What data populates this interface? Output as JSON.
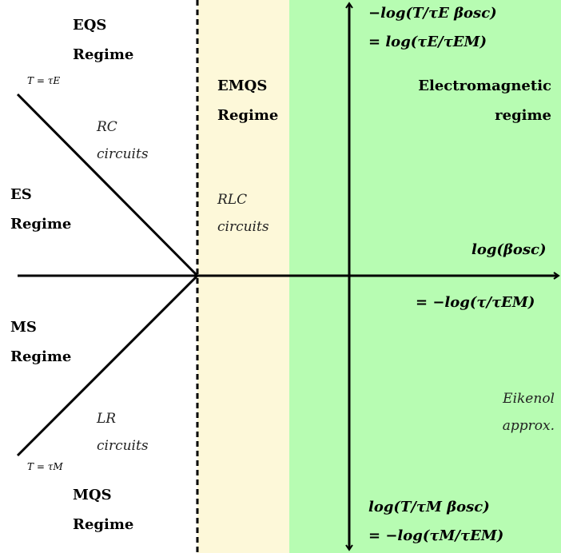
{
  "colors": {
    "emqs_zone": "#fdf8d9",
    "em_zone": "#b7fcb2",
    "axis": "#000000"
  },
  "regimes": {
    "eqs": [
      "EQS",
      "Regime"
    ],
    "es": [
      "ES",
      "Regime"
    ],
    "ms": [
      "MS",
      "Regime"
    ],
    "mqs": [
      "MQS",
      "Regime"
    ],
    "emqs": [
      "EMQS",
      "Regime"
    ],
    "em": [
      "Electromagnetic",
      "regime"
    ]
  },
  "circuits": {
    "rc": [
      "RC",
      "circuits"
    ],
    "rlc": [
      "RLC",
      "circuits"
    ],
    "lr": [
      "LR",
      "circuits"
    ]
  },
  "boundaries": {
    "upper": "T = τE",
    "lower": "T = τM"
  },
  "axes": {
    "x_label_1": "log(βosc)",
    "x_label_2": "= −log(τ/τEM)",
    "y_top_1": "−log(T/τE βosc)",
    "y_top_2": "= log(τE/τEM)",
    "y_bottom_1": "log(T/τM βosc)",
    "y_bottom_2": "= −log(τM/τEM)"
  },
  "eikonal": [
    "Eikenol",
    "approx."
  ]
}
